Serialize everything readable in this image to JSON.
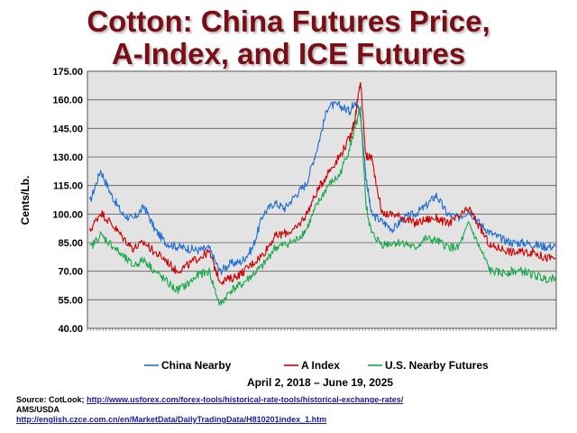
{
  "title_line1": "Cotton:  China Futures Price,",
  "title_line2": "A-Index, and ICE Futures",
  "date_range": "April 2, 2018 – June 19, 2025",
  "source": {
    "label": "Source:  CotLook;",
    "link1": "http://www.usforex.com/forex-tools/historical-rate-tools/historical-exchange-rates/",
    "line2": "AMS/USDA",
    "link2": "http://english.czce.com.cn/en/MarketData/DailyTradingData/H810201index_1.htm"
  },
  "colors": {
    "china": "#1f6fd1",
    "aindex": "#cc0000",
    "us": "#1aa84a",
    "plot_bg": "#e3e3e3",
    "title": "#7a0e14"
  },
  "chart_data": {
    "type": "line",
    "xlabel": "",
    "ylabel": "Cents/Lb.",
    "ylim": [
      40,
      175
    ],
    "yticks": [
      "175.00",
      "160.00",
      "145.00",
      "130.00",
      "115.00",
      "100.00",
      "85.00",
      "70.00",
      "55.00",
      "40.00"
    ],
    "grid": true,
    "legend_position": "bottom",
    "x_start": "2018-04-02",
    "x_end": "2025-06-19",
    "x": [
      "2018-04",
      "2018-06",
      "2018-08",
      "2018-10",
      "2018-12",
      "2019-02",
      "2019-04",
      "2019-06",
      "2019-08",
      "2019-10",
      "2019-12",
      "2020-02",
      "2020-04",
      "2020-06",
      "2020-08",
      "2020-10",
      "2020-12",
      "2021-02",
      "2021-04",
      "2021-06",
      "2021-08",
      "2021-10",
      "2021-12",
      "2022-02",
      "2022-04",
      "2022-05",
      "2022-06",
      "2022-07",
      "2022-08",
      "2022-10",
      "2022-12",
      "2023-02",
      "2023-04",
      "2023-06",
      "2023-08",
      "2023-10",
      "2023-12",
      "2024-02",
      "2024-04",
      "2024-06",
      "2024-08",
      "2024-10",
      "2024-12",
      "2025-02",
      "2025-04",
      "2025-06"
    ],
    "series": [
      {
        "name": "China Nearby",
        "color_key": "china",
        "values": [
          106,
          123,
          110,
          100,
          97,
          104,
          92,
          85,
          83,
          82,
          81,
          82,
          70,
          74,
          75,
          82,
          100,
          106,
          103,
          110,
          116,
          135,
          157,
          157,
          154,
          160,
          152,
          120,
          100,
          96,
          92,
          98,
          100,
          104,
          110,
          100,
          98,
          102,
          95,
          90,
          87,
          85,
          85,
          84,
          83,
          83
        ]
      },
      {
        "name": "A Index",
        "color_key": "aindex",
        "values": [
          91,
          101,
          95,
          88,
          82,
          85,
          80,
          76,
          70,
          73,
          77,
          80,
          65,
          66,
          69,
          74,
          79,
          88,
          90,
          92,
          100,
          112,
          122,
          130,
          140,
          150,
          170,
          130,
          130,
          100,
          100,
          98,
          95,
          97,
          98,
          95,
          98,
          103,
          93,
          83,
          82,
          80,
          80,
          80,
          77,
          77
        ]
      },
      {
        "name": "U.S. Nearby Futures",
        "color_key": "us",
        "values": [
          82,
          89,
          84,
          78,
          73,
          76,
          70,
          65,
          60,
          63,
          68,
          70,
          52,
          60,
          63,
          68,
          73,
          82,
          84,
          86,
          92,
          105,
          115,
          120,
          135,
          145,
          155,
          105,
          90,
          84,
          85,
          85,
          82,
          87,
          86,
          83,
          82,
          95,
          82,
          70,
          69,
          70,
          70,
          68,
          66,
          67
        ]
      }
    ]
  }
}
